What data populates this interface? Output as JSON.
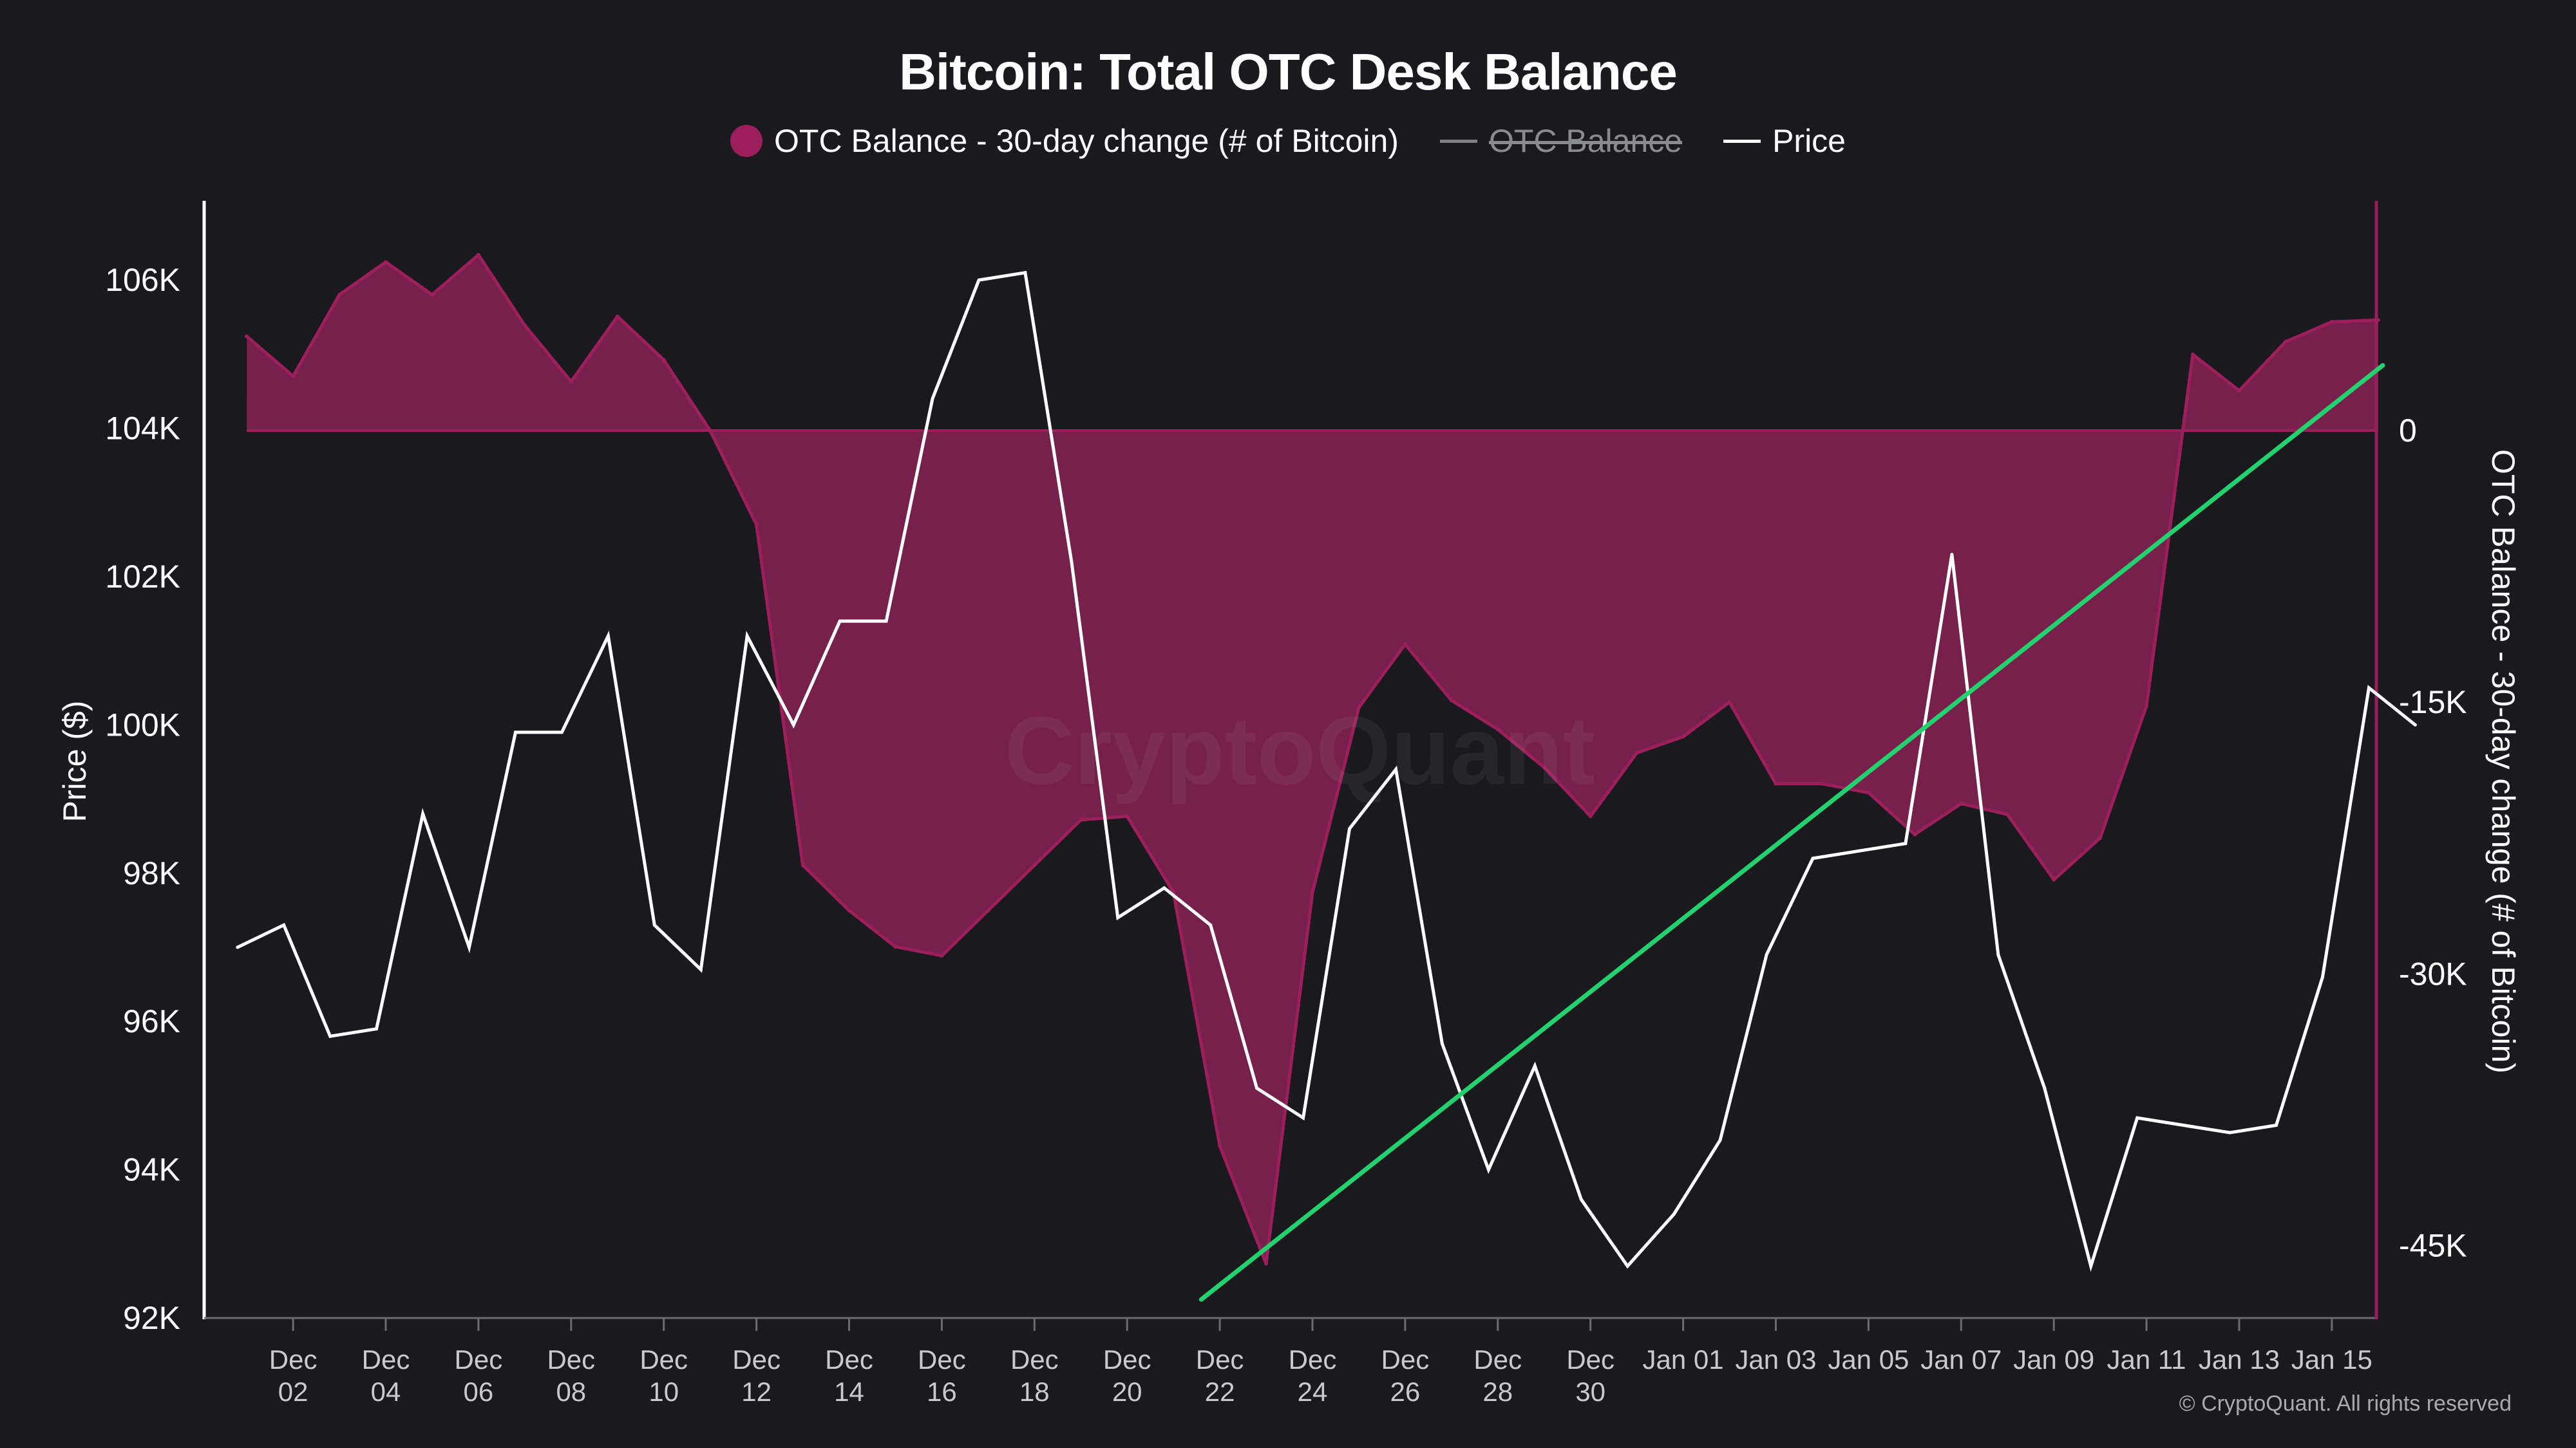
{
  "title": "Bitcoin: Total OTC Desk Balance",
  "watermark": "CryptoQuant",
  "copyright": "© CryptoQuant. All rights reserved",
  "legend": [
    {
      "label": "OTC Balance - 30-day change (# of Bitcoin)",
      "marker": "dot",
      "color": "#9c1f5c",
      "struck": false
    },
    {
      "label": "OTC Balance",
      "marker": "line",
      "color": "#7f7f88",
      "struck": true
    },
    {
      "label": "Price",
      "marker": "line",
      "color": "#ffffff",
      "struck": false
    }
  ],
  "chart_data": {
    "type": "area",
    "x_ticks": [
      {
        "index": 1,
        "lines": [
          "Dec",
          "02"
        ]
      },
      {
        "index": 3,
        "lines": [
          "Dec",
          "04"
        ]
      },
      {
        "index": 5,
        "lines": [
          "Dec",
          "06"
        ]
      },
      {
        "index": 7,
        "lines": [
          "Dec",
          "08"
        ]
      },
      {
        "index": 9,
        "lines": [
          "Dec",
          "10"
        ]
      },
      {
        "index": 11,
        "lines": [
          "Dec",
          "12"
        ]
      },
      {
        "index": 13,
        "lines": [
          "Dec",
          "14"
        ]
      },
      {
        "index": 15,
        "lines": [
          "Dec",
          "16"
        ]
      },
      {
        "index": 17,
        "lines": [
          "Dec",
          "18"
        ]
      },
      {
        "index": 19,
        "lines": [
          "Dec",
          "20"
        ]
      },
      {
        "index": 21,
        "lines": [
          "Dec",
          "22"
        ]
      },
      {
        "index": 23,
        "lines": [
          "Dec",
          "24"
        ]
      },
      {
        "index": 25,
        "lines": [
          "Dec",
          "26"
        ]
      },
      {
        "index": 27,
        "lines": [
          "Dec",
          "28"
        ]
      },
      {
        "index": 29,
        "lines": [
          "Dec",
          "30"
        ]
      },
      {
        "index": 31,
        "lines": [
          "Jan 01"
        ]
      },
      {
        "index": 33,
        "lines": [
          "Jan 03"
        ]
      },
      {
        "index": 35,
        "lines": [
          "Jan 05"
        ]
      },
      {
        "index": 37,
        "lines": [
          "Jan 07"
        ]
      },
      {
        "index": 39,
        "lines": [
          "Jan 09"
        ]
      },
      {
        "index": 41,
        "lines": [
          "Jan 11"
        ]
      },
      {
        "index": 43,
        "lines": [
          "Jan 13"
        ]
      },
      {
        "index": 45,
        "lines": [
          "Jan 15"
        ]
      }
    ],
    "x_range": [
      -0.6,
      46.1
    ],
    "y_left": {
      "label": "Price ($)",
      "range": [
        92000,
        107000
      ],
      "ticks": [
        92000,
        94000,
        96000,
        98000,
        100000,
        102000,
        104000,
        106000
      ],
      "tick_labels": [
        "92K",
        "94K",
        "96K",
        "98K",
        "100K",
        "102K",
        "104K",
        "106K"
      ]
    },
    "y_right": {
      "label": "OTC Balance - 30-day change (# of Bitcoin)",
      "range": [
        -49000,
        12400
      ],
      "ticks": [
        0,
        -15000,
        -30000,
        -45000
      ],
      "tick_labels": [
        "0",
        "-15K",
        "-30K",
        "-45K"
      ]
    },
    "grid": false,
    "series": [
      {
        "name": "OTC Balance - 30-day change (# of Bitcoin)",
        "type": "area",
        "axis": "right",
        "color": "#9c1f5c",
        "fill": "#76204b",
        "x_start": 0,
        "values": [
          5200,
          3000,
          7500,
          9300,
          7500,
          9700,
          5800,
          2700,
          6300,
          3900,
          0,
          -5200,
          -24000,
          -26500,
          -28500,
          -29000,
          -26500,
          -24000,
          -21500,
          -21300,
          -25500,
          -39500,
          -46000,
          -25500,
          -15300,
          -11800,
          -14900,
          -16500,
          -18600,
          -21300,
          -17800,
          -16900,
          -15000,
          -19500,
          -19500,
          -20000,
          -22300,
          -20600,
          -21200,
          -24800,
          -22500,
          -15200,
          4200,
          2200,
          4900,
          6000,
          6100
        ]
      },
      {
        "name": "Price",
        "type": "line",
        "axis": "left",
        "color": "#ffffff",
        "x_start": -0.2,
        "values": [
          97000,
          97300,
          95800,
          95900,
          98800,
          97000,
          99900,
          99900,
          101200,
          97300,
          96700,
          101200,
          100000,
          101400,
          101400,
          104400,
          106000,
          106100,
          102200,
          97400,
          97800,
          97300,
          95100,
          94700,
          98600,
          99400,
          95700,
          94000,
          95400,
          93600,
          92700,
          93400,
          94400,
          96900,
          98200,
          98300,
          98400,
          102300,
          96900,
          95100,
          92700,
          94700,
          94600,
          94500,
          94600,
          96600,
          100500,
          100000
        ]
      },
      {
        "name": "",
        "type": "trendline",
        "axis": "left",
        "color": "#22d26e",
        "points": [
          [
            20.6,
            92250
          ],
          [
            46.1,
            104850
          ]
        ]
      }
    ]
  }
}
